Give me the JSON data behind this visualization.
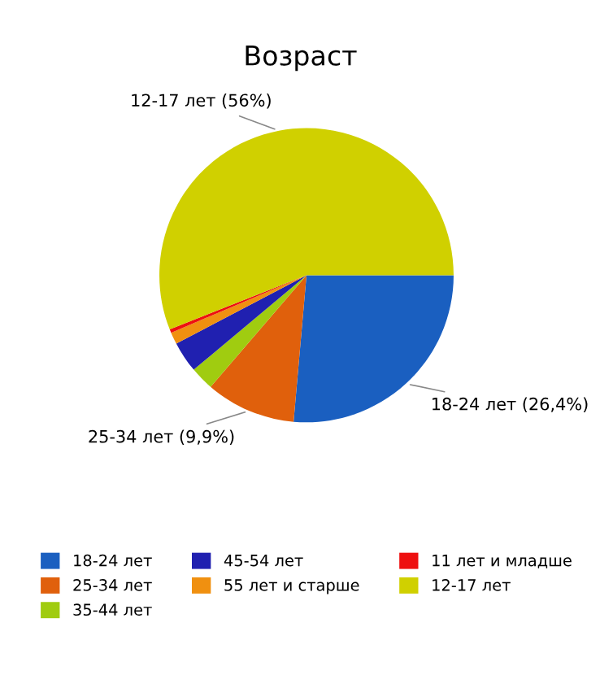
{
  "chart_data": {
    "type": "pie",
    "title": "Возраст",
    "categories": [
      "18-24 лет",
      "25-34 лет",
      "35-44 лет",
      "45-54 лет",
      "55 лет и старше",
      "11 лет и младше",
      "12-17 лет"
    ],
    "values": [
      26.4,
      9.9,
      2.6,
      3.4,
      1.3,
      0.4,
      56
    ],
    "colors": [
      "#1a5fc0",
      "#e0600c",
      "#a0cc10",
      "#2020b0",
      "#f09010",
      "#ee1010",
      "#d0d000"
    ],
    "value_labels": [
      "18-24 лет (26,4%)",
      "25-34 лет (9,9%)",
      null,
      null,
      null,
      null,
      "12-17 лет (56%)"
    ],
    "legend": "bottom"
  }
}
